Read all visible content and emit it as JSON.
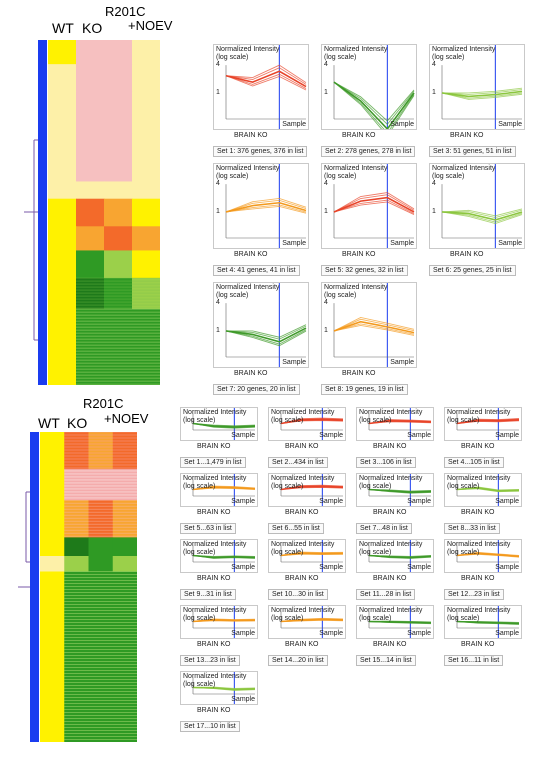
{
  "top": {
    "columns": [
      "WT",
      "KO",
      "R201C",
      "+NOEV"
    ],
    "plots": [
      {
        "set": "Set 1: 376 genes, 376 in list"
      },
      {
        "set": "Set 2: 278 genes, 278 in list"
      },
      {
        "set": "Set 3: 51 genes, 51 in list"
      },
      {
        "set": "Set 4: 41 genes, 41 in list"
      },
      {
        "set": "Set 5: 32 genes, 32 in list"
      },
      {
        "set": "Set 6: 25 genes, 25 in list"
      },
      {
        "set": "Set 7: 20 genes, 20 in list"
      },
      {
        "set": "Set 8: 19 genes, 19 in list"
      }
    ]
  },
  "bottom": {
    "columns": [
      "WT",
      "KO",
      "R201C",
      "+NOEV"
    ],
    "plots": [
      {
        "set": "Set 1...1,479 in list"
      },
      {
        "set": "Set 2...434 in list"
      },
      {
        "set": "Set 3...106 in list"
      },
      {
        "set": "Set 4...105 in list"
      },
      {
        "set": "Set 5...63 in list"
      },
      {
        "set": "Set 6...55 in list"
      },
      {
        "set": "Set 7...48 in list"
      },
      {
        "set": "Set 8...33 in list"
      },
      {
        "set": "Set 9...31 in list"
      },
      {
        "set": "Set 10...30 in list"
      },
      {
        "set": "Set 11...28 in list"
      },
      {
        "set": "Set 12...23 in list"
      },
      {
        "set": "Set 13...23 in list"
      },
      {
        "set": "Set 14...20 in list"
      },
      {
        "set": "Set 15...14 in list"
      },
      {
        "set": "Set 16...11 in list"
      },
      {
        "set": "Set 17...10 in list"
      }
    ]
  },
  "plot_text": {
    "ylabel": "Normalized Intensity",
    "ylabel2": "(log scale)",
    "xlabel": "BRAIN KO",
    "sample": "Sample",
    "tick4": "4",
    "tick1": "1"
  },
  "colors": {
    "dendrogram": "#1a3cf0",
    "red": "#e8442a",
    "orange": "#f39a1e",
    "green": "#3f9a2a",
    "lightgreen": "#8cc63f",
    "pink": "#f4b8b8"
  },
  "chart_data": [
    {
      "type": "heatmap",
      "panel": "top",
      "columns": [
        "WT",
        "KO",
        "R201C",
        "+NOEV"
      ],
      "series": [
        {
          "name": "Set 1",
          "values": [
            3,
            2,
            4,
            1.5
          ]
        },
        {
          "name": "Set 2",
          "values": [
            2,
            0.6,
            0.1,
            1
          ]
        },
        {
          "name": "Set 3",
          "values": [
            1,
            0.8,
            0.9,
            1.1
          ]
        },
        {
          "name": "Set 4",
          "values": [
            1,
            1.5,
            1.8,
            1.1
          ]
        },
        {
          "name": "Set 5",
          "values": [
            1,
            2,
            2.5,
            1
          ]
        },
        {
          "name": "Set 6",
          "values": [
            1,
            0.9,
            0.6,
            1
          ]
        },
        {
          "name": "Set 7",
          "values": [
            1,
            0.8,
            0.5,
            1.2
          ]
        },
        {
          "name": "Set 8",
          "values": [
            1,
            1.8,
            1.3,
            0.9
          ]
        }
      ]
    },
    {
      "type": "heatmap",
      "panel": "bottom",
      "columns": [
        "WT",
        "KO",
        "R201C",
        "+NOEV"
      ],
      "series": [
        {
          "name": "Set 1",
          "values": [
            1,
            0.5,
            0.4,
            0.5
          ]
        },
        {
          "name": "Set 2",
          "values": [
            1,
            2.5,
            2.8,
            2.4
          ]
        },
        {
          "name": "Set 3",
          "values": [
            1,
            2,
            1.8,
            1.5
          ]
        },
        {
          "name": "Set 4",
          "values": [
            1,
            2.2,
            2,
            2.6
          ]
        },
        {
          "name": "Set 5",
          "values": [
            1,
            1.8,
            1.6,
            1.2
          ]
        },
        {
          "name": "Set 6",
          "values": [
            1,
            2,
            2.2,
            1.8
          ]
        },
        {
          "name": "Set 7",
          "values": [
            1,
            0.7,
            0.5,
            0.6
          ]
        },
        {
          "name": "Set 8",
          "values": [
            1,
            1.5,
            0.7,
            0.8
          ]
        },
        {
          "name": "Set 9",
          "values": [
            1,
            0.6,
            0.7,
            0.6
          ]
        },
        {
          "name": "Set 10",
          "values": [
            1,
            1.8,
            1.6,
            1.7
          ]
        },
        {
          "name": "Set 11",
          "values": [
            1,
            0.7,
            0.6,
            0.8
          ]
        },
        {
          "name": "Set 12",
          "values": [
            1,
            1.7,
            1.2,
            0.8
          ]
        },
        {
          "name": "Set 13",
          "values": [
            1,
            1.5,
            1.3,
            1.4
          ]
        },
        {
          "name": "Set 14",
          "values": [
            1,
            1.4,
            1.7,
            1.5
          ]
        },
        {
          "name": "Set 15",
          "values": [
            1,
            0.9,
            0.8,
            0.7
          ]
        },
        {
          "name": "Set 16",
          "values": [
            1,
            0.8,
            0.7,
            0.6
          ]
        },
        {
          "name": "Set 17",
          "values": [
            1,
            0.9,
            0.6,
            0.7
          ]
        }
      ]
    }
  ]
}
